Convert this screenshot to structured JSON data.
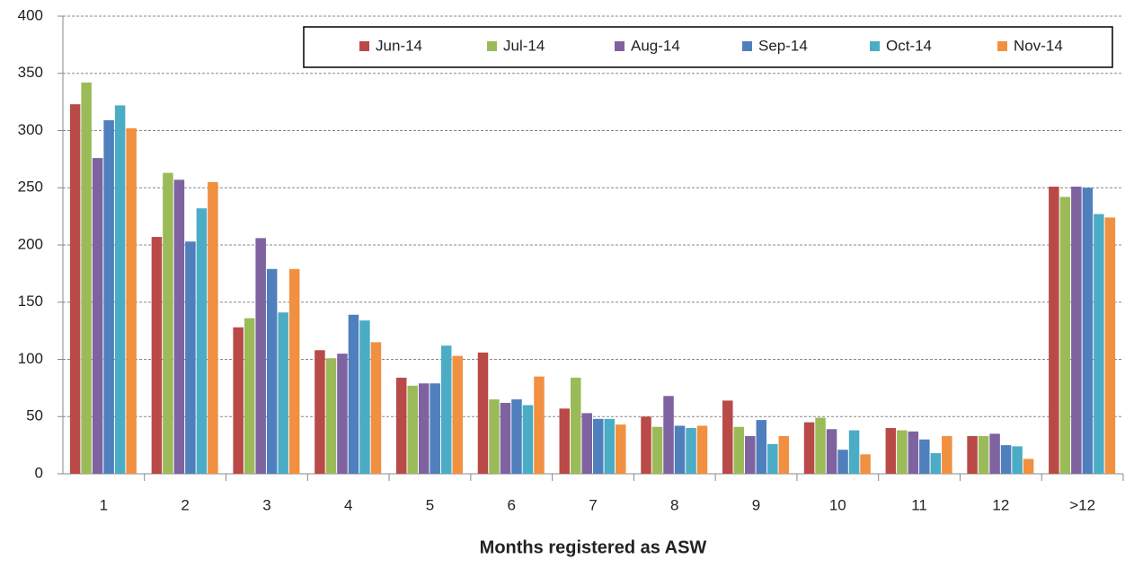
{
  "chart_data": {
    "type": "bar",
    "x_label": "Months registered as ASW",
    "categories": [
      "1",
      "2",
      "3",
      "4",
      "5",
      "6",
      "7",
      "8",
      "9",
      "10",
      "11",
      "12",
      ">12"
    ],
    "series": [
      {
        "name": "Jun-14",
        "color": "#b94a48",
        "values": [
          323,
          207,
          128,
          108,
          84,
          106,
          57,
          50,
          64,
          45,
          40,
          33,
          251
        ]
      },
      {
        "name": "Jul-14",
        "color": "#9bbb59",
        "values": [
          342,
          263,
          136,
          101,
          77,
          65,
          84,
          41,
          41,
          49,
          38,
          33,
          242
        ]
      },
      {
        "name": "Aug-14",
        "color": "#7f63a1",
        "values": [
          276,
          257,
          206,
          105,
          79,
          62,
          53,
          68,
          33,
          39,
          37,
          35,
          251
        ]
      },
      {
        "name": "Sep-14",
        "color": "#4f7fbd",
        "values": [
          309,
          203,
          179,
          139,
          79,
          65,
          48,
          42,
          47,
          21,
          30,
          25,
          250
        ]
      },
      {
        "name": "Oct-14",
        "color": "#4bacc6",
        "values": [
          322,
          232,
          141,
          134,
          112,
          60,
          48,
          40,
          26,
          38,
          18,
          24,
          227
        ]
      },
      {
        "name": "Nov-14",
        "color": "#f09040",
        "values": [
          302,
          255,
          179,
          115,
          103,
          85,
          43,
          42,
          33,
          17,
          33,
          13,
          224
        ]
      }
    ],
    "ylim": [
      0,
      400
    ],
    "yticks": [
      0,
      50,
      100,
      150,
      200,
      250,
      300,
      350,
      400
    ],
    "grid": true,
    "legend": "top"
  }
}
